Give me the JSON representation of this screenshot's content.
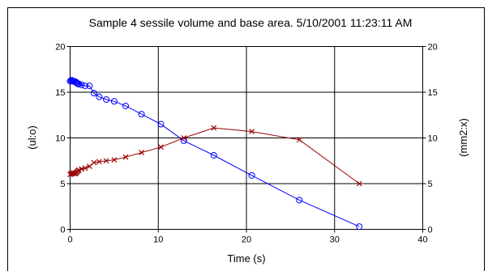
{
  "chart_data": {
    "type": "line",
    "title": "Sample 4 sessile volume and base area.  5/10/2001 11:23:11 AM",
    "xlabel": "Time (s)",
    "ylabel_left": "(ul:o)",
    "ylabel_right": "(mm2:x)",
    "xlim": [
      0,
      40
    ],
    "ylim_left": [
      0,
      20
    ],
    "ylim_right": [
      0,
      20
    ],
    "x_ticks": [
      "0",
      "10",
      "20",
      "30",
      "40"
    ],
    "y_ticks_left": [
      "0",
      "5",
      "10",
      "15",
      "20"
    ],
    "y_ticks_right": [
      "0",
      "5",
      "10",
      "15",
      "20"
    ],
    "grid": true,
    "series": [
      {
        "axis": "left",
        "marker": "circle",
        "color": "#0000ff",
        "x": [
          0.0,
          0.1,
          0.2,
          0.3,
          0.4,
          0.5,
          0.6,
          0.7,
          0.8,
          0.9,
          1.0,
          1.3,
          1.7,
          2.2,
          2.7,
          3.3,
          4.1,
          5.0,
          6.3,
          8.1,
          10.3,
          12.9,
          16.3,
          20.6,
          26.0,
          32.8
        ],
        "y": [
          16.2,
          16.3,
          16.3,
          16.2,
          16.2,
          16.2,
          16.1,
          16.1,
          16.0,
          15.9,
          15.9,
          15.8,
          15.7,
          15.7,
          14.9,
          14.5,
          14.2,
          14.0,
          13.5,
          12.6,
          11.5,
          9.7,
          8.1,
          5.9,
          3.2,
          0.3
        ]
      },
      {
        "axis": "right",
        "marker": "x",
        "color": "#990000",
        "x": [
          0.0,
          0.1,
          0.2,
          0.3,
          0.4,
          0.5,
          0.6,
          0.7,
          0.8,
          0.9,
          1.0,
          1.3,
          1.7,
          2.2,
          2.7,
          3.3,
          4.1,
          5.0,
          6.3,
          8.1,
          10.3,
          12.9,
          16.3,
          20.6,
          26.0,
          32.8
        ],
        "y": [
          6.0,
          6.1,
          6.1,
          6.1,
          6.2,
          6.1,
          6.1,
          6.2,
          6.3,
          6.4,
          6.5,
          6.6,
          6.7,
          6.9,
          7.3,
          7.4,
          7.5,
          7.6,
          7.9,
          8.4,
          9.0,
          10.0,
          11.1,
          10.7,
          9.8,
          5.0
        ]
      }
    ]
  }
}
